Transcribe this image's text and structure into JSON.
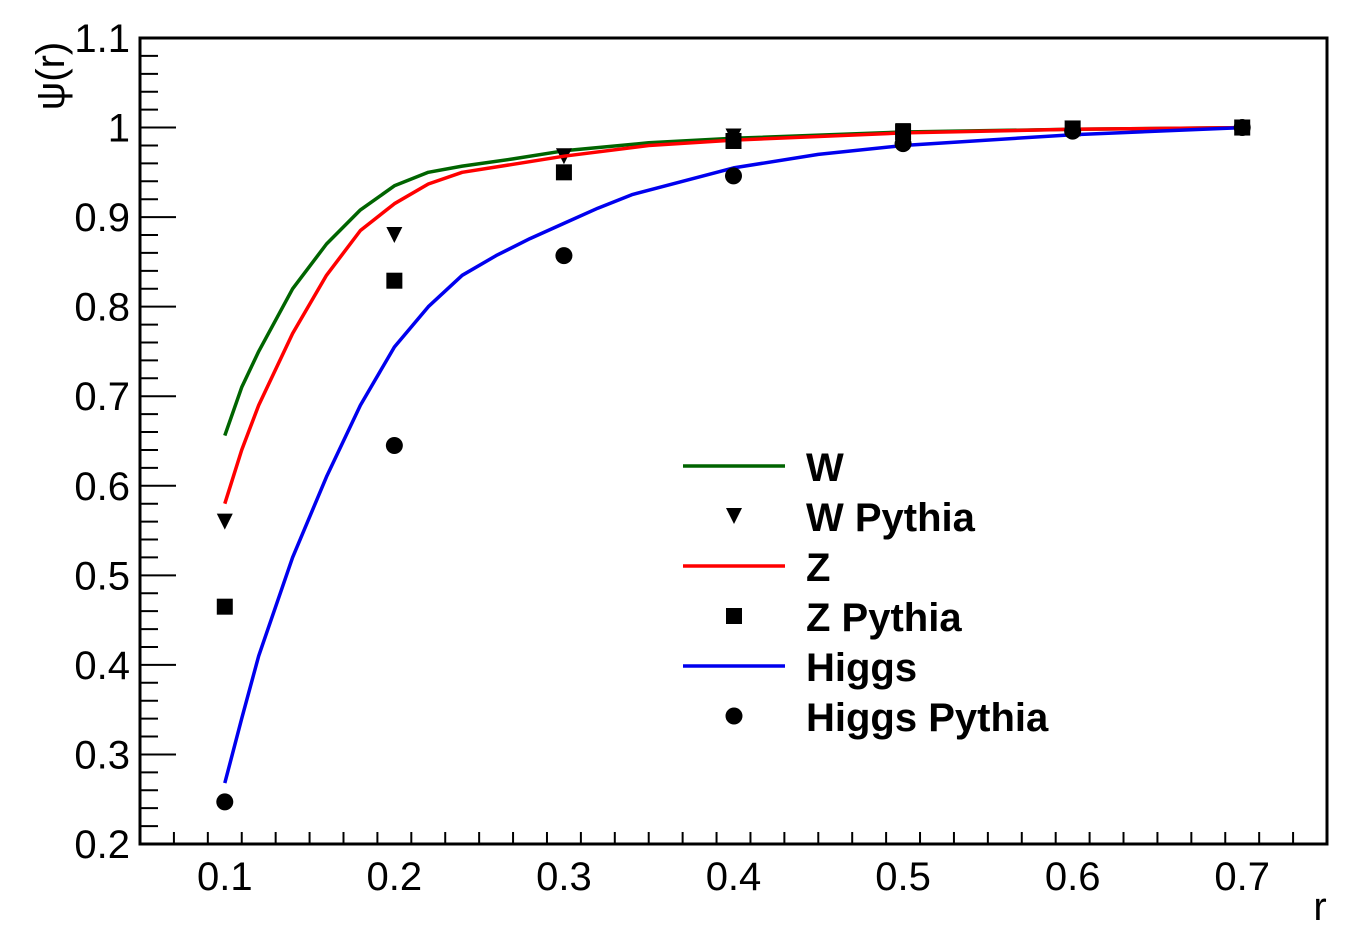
{
  "chart_data": {
    "type": "line",
    "xlabel": "r",
    "ylabel": "ψ(r)",
    "xlim": [
      0.05,
      0.75
    ],
    "ylim": [
      0.2,
      1.1
    ],
    "xticks": [
      "0.1",
      "0.2",
      "0.3",
      "0.4",
      "0.5",
      "0.6",
      "0.7"
    ],
    "yticks": [
      "0.2",
      "0.3",
      "0.4",
      "0.5",
      "0.6",
      "0.7",
      "0.8",
      "0.9",
      "1",
      "1.1"
    ],
    "grid": false,
    "legend_position": "center-right",
    "series": [
      {
        "name": "W",
        "kind": "line",
        "color": "#006400",
        "x": [
          0.1,
          0.11,
          0.12,
          0.14,
          0.16,
          0.18,
          0.2,
          0.22,
          0.24,
          0.27,
          0.3,
          0.35,
          0.4,
          0.5,
          0.6,
          0.7
        ],
        "y": [
          0.656,
          0.71,
          0.75,
          0.82,
          0.87,
          0.908,
          0.935,
          0.95,
          0.957,
          0.965,
          0.974,
          0.983,
          0.988,
          0.995,
          0.998,
          1.0
        ]
      },
      {
        "name": "W Pythia",
        "kind": "marker",
        "marker": "triangle-down",
        "color": "#000000",
        "x": [
          0.1,
          0.2,
          0.3,
          0.4,
          0.5,
          0.6,
          0.7
        ],
        "y": [
          0.56,
          0.88,
          0.968,
          0.99,
          0.996,
          0.999,
          1.0
        ]
      },
      {
        "name": "Z",
        "kind": "line",
        "color": "#ff0000",
        "x": [
          0.1,
          0.11,
          0.12,
          0.14,
          0.16,
          0.18,
          0.2,
          0.22,
          0.24,
          0.27,
          0.3,
          0.35,
          0.4,
          0.5,
          0.6,
          0.7
        ],
        "y": [
          0.58,
          0.64,
          0.69,
          0.77,
          0.835,
          0.885,
          0.915,
          0.937,
          0.95,
          0.959,
          0.968,
          0.98,
          0.986,
          0.994,
          0.998,
          1.0
        ]
      },
      {
        "name": "Z Pythia",
        "kind": "marker",
        "marker": "square",
        "color": "#000000",
        "x": [
          0.1,
          0.2,
          0.3,
          0.4,
          0.5,
          0.6,
          0.7
        ],
        "y": [
          0.465,
          0.829,
          0.95,
          0.985,
          0.995,
          0.999,
          1.0
        ]
      },
      {
        "name": "Higgs",
        "kind": "line",
        "color": "#0000ee",
        "x": [
          0.1,
          0.11,
          0.12,
          0.14,
          0.16,
          0.18,
          0.2,
          0.22,
          0.24,
          0.26,
          0.28,
          0.3,
          0.32,
          0.34,
          0.37,
          0.4,
          0.45,
          0.5,
          0.6,
          0.7
        ],
        "y": [
          0.268,
          0.34,
          0.41,
          0.52,
          0.61,
          0.69,
          0.755,
          0.8,
          0.835,
          0.857,
          0.876,
          0.893,
          0.91,
          0.925,
          0.94,
          0.955,
          0.97,
          0.98,
          0.992,
          1.0
        ]
      },
      {
        "name": "Higgs Pythia",
        "kind": "marker",
        "marker": "circle",
        "color": "#000000",
        "x": [
          0.1,
          0.2,
          0.3,
          0.4,
          0.5,
          0.6,
          0.7
        ],
        "y": [
          0.247,
          0.645,
          0.857,
          0.946,
          0.982,
          0.996,
          1.0
        ]
      }
    ]
  }
}
